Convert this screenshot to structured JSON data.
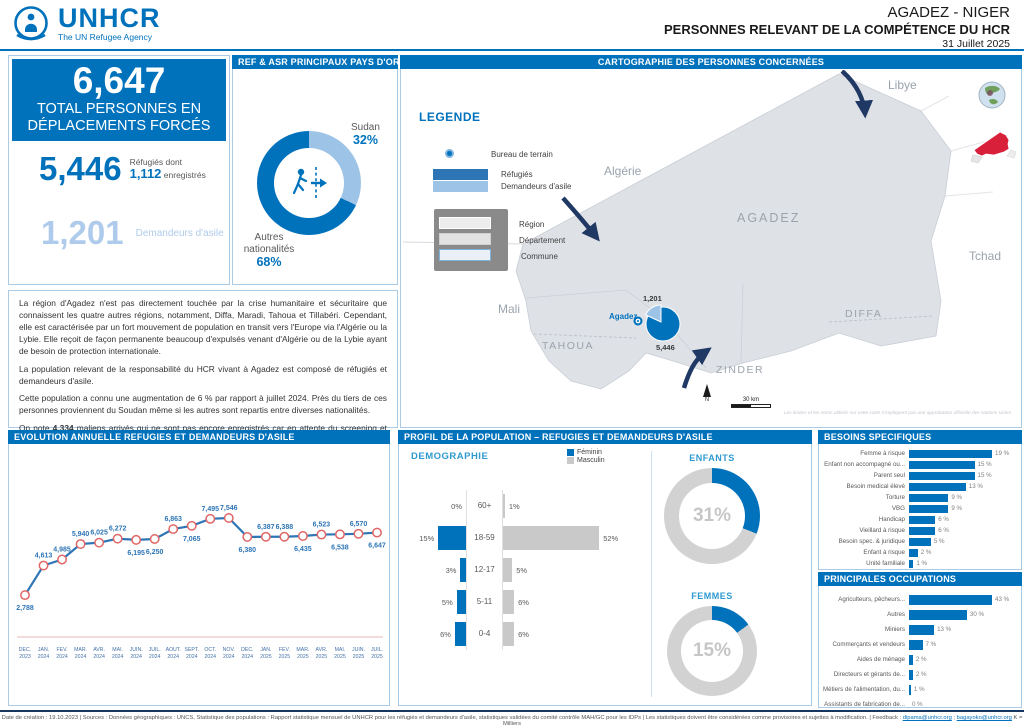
{
  "header": {
    "brand": "UNHCR",
    "brand_sub": "The UN Refugee Agency",
    "region": "AGADEZ - NIGER",
    "title": "PERSONNES RELEVANT DE LA COMPÉTENCE DU HCR",
    "date": "31 Juillet 2025"
  },
  "totals": {
    "total": "6,647",
    "total_label_1": "TOTAL PERSONNES EN",
    "total_label_2": "DÉPLACEMENTS FORCÉS",
    "refugees": "5,446",
    "refugees_note_1": "Réfugiés dont",
    "refugees_registered": "1,112",
    "refugees_note_2": "enregistrés",
    "asylum": "1,201",
    "asylum_label": "Demandeurs d'asile"
  },
  "origin": {
    "section_title": "REF & ASR PRINCIPAUX PAYS D'ORIGINE"
  },
  "map": {
    "section_title": "CARTOGRAPHIE DES PERSONNES CONCERNÉES",
    "legend_title": "LEGENDE",
    "legend_field_office": "Bureau de terrain",
    "legend_refugees": "Réfugiés",
    "legend_asylum": "Demandeurs d'asile",
    "legend_region": "Région",
    "legend_departement": "Département",
    "legend_commune": "Commune",
    "countries": {
      "algerie": "Algérie",
      "libye": "Libye",
      "mali": "Mali",
      "tchad": "Tchad"
    },
    "regions": {
      "agadez": "AGADEZ",
      "tahoua": "TAHOUA",
      "zinder": "ZINDER",
      "diffa": "DIFFA"
    },
    "city": "Agadez",
    "scale_label": "30 km",
    "north_label": "N",
    "disclaimer": "Les limites et les noms utilisés sur cette carte n'impliquent pas une approbation officielle des Nations Unies"
  },
  "narrative": {
    "p1": "La région d'Agadez n'est pas directement touchée par la crise humanitaire et sécuritaire que connaissent les quatre autres régions, notamment, Diffa, Maradi, Tahoua et Tillabéri. Cependant, elle est caractérisée par un fort mouvement de population en transit vers l'Europe via l'Algérie ou la Lybie. Elle reçoit de façon permanente beaucoup d'expulsés venant d'Algérie ou de la Lybie ayant de besoin de protection internationale.",
    "p2": "La population relevant de la responsabilité du HCR vivant à Agadez est composé de réfugiés et demandeurs d'asile.",
    "p3": "Cette population a connu une augmentation de 6 % par rapport à juillet 2024. Près du tiers de ces personnes proviennent du Soudan même si les autres sont repartis entre diverses nationalités.",
    "p4_pre": "On note ",
    "p4_bold": "4,334",
    "p4_post": " maliens arrivés qui ne sont pas encore enregistrés car en attente du screening et enregistrement par le Gouvernement."
  },
  "evolution": {
    "section_title": "EVOLUTION ANNUELLE REFUGIES ET DEMANDEURS D'ASILE"
  },
  "profile": {
    "section_title": "PROFIL DE LA POPULATION – REFUGIES ET DEMANDEURS D'ASILE"
  },
  "besoins": {
    "section_title": "BESOINS SPECIFIQUES"
  },
  "occupations": {
    "section_title": "PRINCIPALES OCCUPATIONS"
  },
  "footer": {
    "text_1": "Date de création : 19.10.2023 | Sources : Données géographiques : UNCS, Statistique des populations : Rapport statistique mensuel de UNHCR pour les réfugiés et demandeurs d'asile, statistiques validées du comité contrôle MAH/GC pour les IDPs | Les statistiques doivent être considérées comme provisoires et sujettes à modification. | Feedback : ",
    "email_1": "dipama@unhcr.org",
    "sep": " ; ",
    "email_2": "bagayoko@unhcr.org",
    "text_2": "  K = Milliers"
  },
  "chart_data": [
    {
      "id": "origin_donut",
      "type": "pie",
      "title": "REF & ASR PRINCIPAUX PAYS D'ORIGINE",
      "slices": [
        {
          "label": "Sudan",
          "value": 32,
          "display": "32%",
          "color": "#9DC3E6"
        },
        {
          "label": "Autres nationalités",
          "value": 68,
          "display": "68%",
          "color": "#0072BC"
        }
      ],
      "unit": "%"
    },
    {
      "id": "evolution",
      "type": "line",
      "title": "EVOLUTION ANNUELLE REFUGIES ET DEMANDEURS D'ASILE",
      "x": [
        "DEC. 2023",
        "JAN. 2024",
        "FEV. 2024",
        "MAR. 2024",
        "AVR. 2024",
        "MAI. 2024",
        "JUIN. 2024",
        "JUIL. 2024",
        "AOUT. 2024",
        "SEPT. 2024",
        "OCT. 2024",
        "NOV. 2024",
        "DEC. 2024",
        "JAN. 2025",
        "FEV. 2025",
        "MAR. 2025",
        "AVR. 2025",
        "MAI. 2025",
        "JUIN. 2025",
        "JUIL. 2025"
      ],
      "values": [
        2788,
        4613,
        4985,
        5940,
        6025,
        6272,
        6195,
        6250,
        6863,
        7065,
        7495,
        7546,
        6380,
        6387,
        6388,
        6435,
        6523,
        6538,
        6570,
        6647
      ],
      "labels": [
        "2,788",
        "4,613",
        "4,985",
        "5,940",
        "6,025",
        "6,272",
        "6,195",
        "6,250",
        "6,863",
        "7,065",
        "7,495",
        "7,546",
        "6,380",
        "6,387",
        "6,388",
        "6,435",
        "6,523",
        "6,538",
        "6,570",
        "6,647"
      ],
      "label_side": [
        "below",
        "above",
        "above",
        "above",
        "above",
        "above",
        "below",
        "below",
        "above",
        "below",
        "above",
        "above",
        "below",
        "above",
        "above",
        "below",
        "above",
        "below",
        "above",
        "below"
      ],
      "line_color": "#2E75B6",
      "marker": "circle-white-red",
      "ylim": [
        2500,
        7800
      ],
      "grid": false,
      "legend": "none"
    },
    {
      "id": "pyramid",
      "type": "bar",
      "orientation": "population-pyramid",
      "title": "DEMOGRAPHIE",
      "categories": [
        "60+",
        "18-59",
        "12-17",
        "5-11",
        "0-4"
      ],
      "series": [
        {
          "name": "Féminin",
          "color": "#0072BC",
          "values": [
            0,
            15,
            3,
            5,
            6
          ],
          "value_labels": [
            "0%",
            "15%",
            "3%",
            "5%",
            "6%"
          ]
        },
        {
          "name": "Masculin",
          "color": "#C9C9C9",
          "values": [
            1,
            52,
            5,
            6,
            6
          ],
          "value_labels": [
            "1%",
            "52%",
            "5%",
            "6%",
            "6%"
          ]
        }
      ],
      "unit": "%"
    },
    {
      "id": "enfants",
      "type": "donut",
      "title": "ENFANTS",
      "value": 31,
      "display": "31%",
      "unit": "%",
      "colors": [
        "#0072BC",
        "#D2D2D2"
      ]
    },
    {
      "id": "femmes",
      "type": "donut",
      "title": "FEMMES",
      "value": 15,
      "display": "15%",
      "unit": "%",
      "colors": [
        "#0072BC",
        "#D2D2D2"
      ]
    },
    {
      "id": "besoins",
      "type": "bar",
      "title": "BESOINS SPECIFIQUES",
      "categories": [
        "Femme à risque",
        "Enfant non accompagné ou...",
        "Parent seul",
        "Besoin medical élevé",
        "Torture",
        "VBG",
        "Handicap",
        "Vieillard à risque",
        "Besoin spec. & juridique",
        "Enfant à risque",
        "Unité familiale"
      ],
      "values": [
        19,
        15,
        15,
        13,
        9,
        9,
        6,
        6,
        5,
        2,
        1
      ],
      "value_labels": [
        "19 %",
        "15 %",
        "15 %",
        "13 %",
        "9 %",
        "9 %",
        "6 %",
        "6 %",
        "5 %",
        "2 %",
        "1 %"
      ],
      "unit": "%",
      "color": "#0072BC"
    },
    {
      "id": "occupations",
      "type": "bar",
      "title": "PRINCIPALES OCCUPATIONS",
      "categories": [
        "Agriculteurs, pêcheurs...",
        "Autres",
        "Miniers",
        "Commerçants et vendeurs",
        "Aides de ménage",
        "Directeurs et gérants de...",
        "Métiers de l'alimentation, du...",
        "Assistants de fabrication de..."
      ],
      "values": [
        43,
        30,
        13,
        7,
        2,
        2,
        1,
        0
      ],
      "value_labels": [
        "43 %",
        "30 %",
        "13 %",
        "7 %",
        "2 %",
        "2 %",
        "1 %",
        "0 %"
      ],
      "unit": "%",
      "color": "#0072BC"
    },
    {
      "id": "map_pie",
      "type": "pie",
      "title": "Agadez",
      "slices": [
        {
          "label": "Réfugiés",
          "value": 5446,
          "display": "5,446",
          "color": "#0072BC"
        },
        {
          "label": "Demandeurs d'asile",
          "value": 1201,
          "display": "1,201",
          "color": "#9DC3E6"
        }
      ]
    }
  ]
}
